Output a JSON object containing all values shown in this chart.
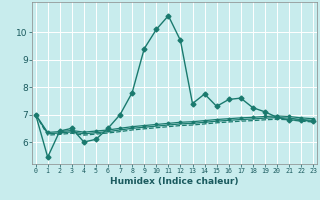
{
  "xlabel": "Humidex (Indice chaleur)",
  "background_color": "#c8eced",
  "grid_color": "#b8d8d9",
  "line_color": "#1a7a6e",
  "x_ticks": [
    0,
    1,
    2,
    3,
    4,
    5,
    6,
    7,
    8,
    9,
    10,
    11,
    12,
    13,
    14,
    15,
    16,
    17,
    18,
    19,
    20,
    21,
    22,
    23
  ],
  "y_ticks": [
    6,
    7,
    8,
    9,
    10
  ],
  "ylim": [
    5.2,
    11.1
  ],
  "xlim": [
    -0.3,
    23.3
  ],
  "series": [
    {
      "x": [
        0,
        1,
        2,
        3,
        4,
        5,
        6,
        7,
        8,
        9,
        10,
        11,
        12,
        13,
        14,
        15,
        16,
        17,
        18,
        19,
        20,
        21,
        22,
        23
      ],
      "y": [
        7.0,
        5.45,
        6.4,
        6.5,
        6.0,
        6.1,
        6.5,
        7.0,
        7.8,
        9.4,
        10.1,
        10.6,
        9.7,
        7.4,
        7.75,
        7.3,
        7.55,
        7.6,
        7.25,
        7.1,
        6.9,
        6.8,
        6.8,
        6.75
      ],
      "marker": "D",
      "markersize": 2.5,
      "linewidth": 1.0,
      "linestyle": "-"
    },
    {
      "x": [
        0,
        1,
        2,
        3,
        4,
        5,
        6,
        7,
        8,
        9,
        10,
        11,
        12,
        13,
        14,
        15,
        16,
        17,
        18,
        19,
        20,
        21,
        22,
        23
      ],
      "y": [
        7.0,
        6.35,
        6.38,
        6.42,
        6.36,
        6.4,
        6.44,
        6.5,
        6.56,
        6.6,
        6.64,
        6.68,
        6.72,
        6.74,
        6.78,
        6.82,
        6.85,
        6.88,
        6.9,
        6.93,
        6.95,
        6.93,
        6.88,
        6.85
      ],
      "marker": "D",
      "markersize": 1.5,
      "linewidth": 0.9,
      "linestyle": "-"
    },
    {
      "x": [
        0,
        1,
        2,
        3,
        4,
        5,
        6,
        7,
        8,
        9,
        10,
        11,
        12,
        13,
        14,
        15,
        16,
        17,
        18,
        19,
        20,
        21,
        22,
        23
      ],
      "y": [
        7.0,
        6.3,
        6.33,
        6.37,
        6.3,
        6.34,
        6.38,
        6.44,
        6.5,
        6.54,
        6.58,
        6.62,
        6.66,
        6.68,
        6.72,
        6.76,
        6.79,
        6.82,
        6.84,
        6.87,
        6.89,
        6.87,
        6.82,
        6.79
      ],
      "marker": null,
      "markersize": 0,
      "linewidth": 0.9,
      "linestyle": "-"
    },
    {
      "x": [
        0,
        1,
        2,
        3,
        4,
        5,
        6,
        7,
        8,
        9,
        10,
        11,
        12,
        13,
        14,
        15,
        16,
        17,
        18,
        19,
        20,
        21,
        22,
        23
      ],
      "y": [
        7.0,
        6.25,
        6.28,
        6.32,
        6.25,
        6.29,
        6.33,
        6.38,
        6.44,
        6.48,
        6.52,
        6.56,
        6.6,
        6.62,
        6.66,
        6.7,
        6.73,
        6.76,
        6.78,
        6.81,
        6.83,
        6.81,
        6.76,
        6.73
      ],
      "marker": null,
      "markersize": 0,
      "linewidth": 0.9,
      "linestyle": "--"
    }
  ]
}
